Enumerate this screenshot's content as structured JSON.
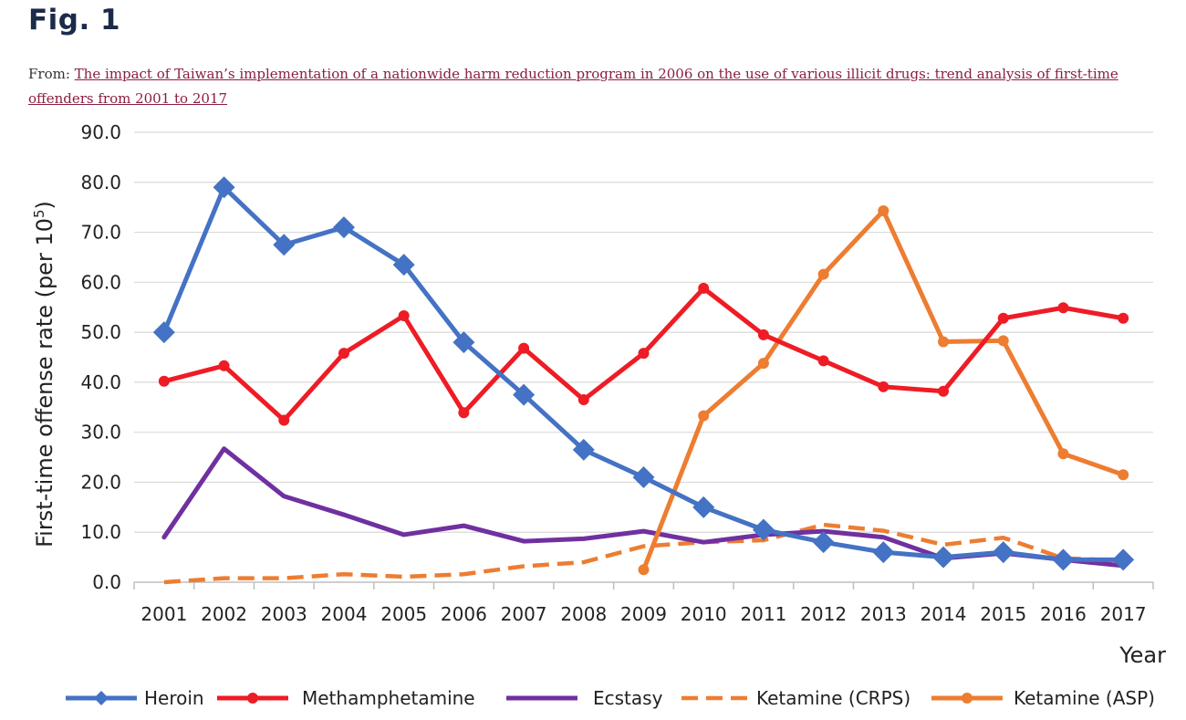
{
  "figure": {
    "title": "Fig. 1",
    "from_prefix": "From: ",
    "link_text": "The impact of Taiwan’s implementation of a nationwide harm reduction program in 2006 on the use of various illicit drugs: trend analysis of first-time offenders from 2001 to 2017"
  },
  "chart_data": {
    "type": "line",
    "title": "",
    "xlabel": "Year",
    "ylabel": "First-time offense rate (per 10",
    "ylabel_superscript": "5",
    "ylabel_suffix": ")",
    "ylim": [
      0,
      90
    ],
    "yticks": [
      "0.0",
      "10.0",
      "20.0",
      "30.0",
      "40.0",
      "50.0",
      "60.0",
      "70.0",
      "80.0",
      "90.0"
    ],
    "grid": true,
    "legend_position": "bottom",
    "categories": [
      "2001",
      "2002",
      "2003",
      "2004",
      "2005",
      "2006",
      "2007",
      "2008",
      "2009",
      "2010",
      "2011",
      "2012",
      "2013",
      "2014",
      "2015",
      "2016",
      "2017"
    ],
    "series": [
      {
        "name": "Heroin",
        "color": "#4472c4",
        "marker": "diamond",
        "dash": false,
        "values": [
          50.0,
          79.0,
          67.5,
          71.0,
          63.5,
          48.0,
          37.5,
          26.5,
          21.0,
          15.0,
          10.5,
          8.0,
          6.0,
          5.0,
          6.0,
          4.5,
          4.5
        ]
      },
      {
        "name": "Methamphetamine",
        "color": "#ee1c25",
        "marker": "circle",
        "dash": false,
        "values": [
          40.2,
          43.3,
          32.4,
          45.8,
          53.3,
          33.9,
          46.8,
          36.5,
          45.8,
          58.8,
          49.5,
          44.3,
          39.1,
          38.2,
          52.8,
          54.9,
          52.8
        ]
      },
      {
        "name": "Ecstasy",
        "color": "#7030a0",
        "marker": "none",
        "dash": false,
        "values": [
          9.0,
          26.7,
          17.2,
          13.5,
          9.5,
          11.3,
          8.2,
          8.7,
          10.2,
          8.0,
          9.5,
          10.2,
          9.0,
          4.8,
          5.8,
          4.5,
          3.3
        ]
      },
      {
        "name": "Ketamine (CRPS)",
        "color": "#ed7d31",
        "marker": "none",
        "dash": true,
        "values": [
          0.0,
          0.8,
          0.8,
          1.6,
          1.1,
          1.6,
          3.2,
          4.0,
          7.2,
          8.0,
          8.4,
          11.5,
          10.3,
          7.5,
          8.9,
          4.8,
          4.3
        ]
      },
      {
        "name": "Ketamine (ASP)",
        "color": "#ed7d31",
        "marker": "circle",
        "dash": false,
        "values": [
          null,
          null,
          null,
          null,
          null,
          null,
          null,
          null,
          2.5,
          33.3,
          43.8,
          61.6,
          74.3,
          48.1,
          48.3,
          25.7,
          21.5
        ]
      }
    ]
  }
}
